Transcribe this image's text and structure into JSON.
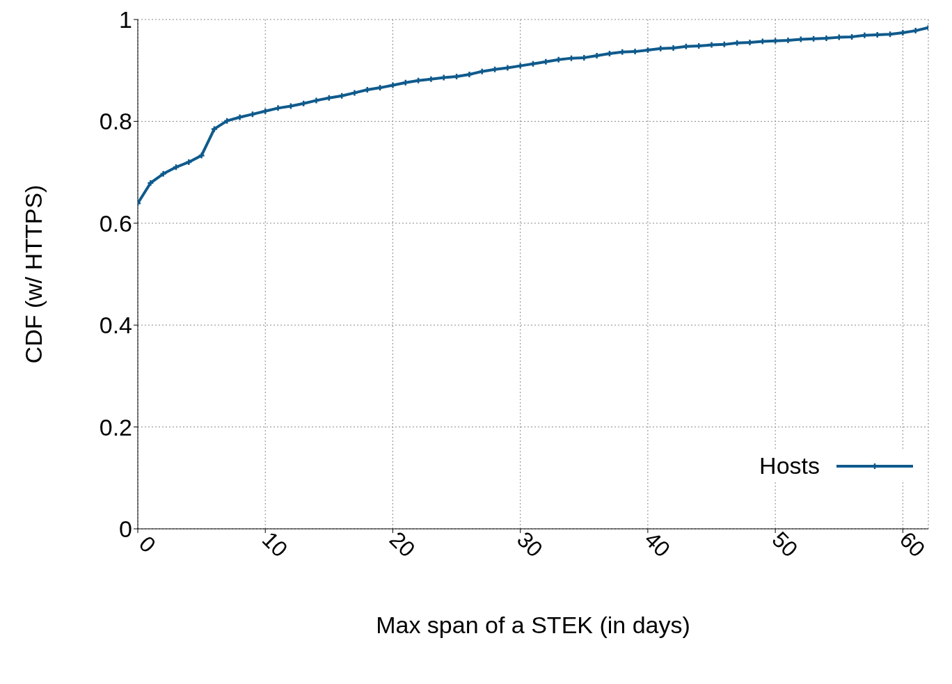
{
  "chart_data": {
    "type": "line",
    "xlabel": "Max span of a STEK (in days)",
    "ylabel": "CDF (w/ HTTPS)",
    "x": [
      0,
      1,
      2,
      3,
      4,
      5,
      6,
      7,
      8,
      9,
      10,
      11,
      12,
      13,
      14,
      15,
      16,
      17,
      18,
      19,
      20,
      21,
      22,
      23,
      24,
      25,
      26,
      27,
      28,
      29,
      30,
      31,
      32,
      33,
      34,
      35,
      36,
      37,
      38,
      39,
      40,
      41,
      42,
      43,
      44,
      45,
      46,
      47,
      48,
      49,
      50,
      51,
      52,
      53,
      54,
      55,
      56,
      57,
      58,
      59,
      60,
      61,
      62
    ],
    "series": [
      {
        "name": "Hosts",
        "color": "#0f5a8c",
        "values": [
          0.639,
          0.679,
          0.697,
          0.71,
          0.72,
          0.733,
          0.785,
          0.801,
          0.808,
          0.814,
          0.82,
          0.826,
          0.83,
          0.835,
          0.841,
          0.846,
          0.85,
          0.856,
          0.862,
          0.866,
          0.871,
          0.876,
          0.88,
          0.883,
          0.886,
          0.888,
          0.892,
          0.898,
          0.902,
          0.905,
          0.909,
          0.913,
          0.917,
          0.921,
          0.924,
          0.925,
          0.929,
          0.933,
          0.936,
          0.937,
          0.94,
          0.943,
          0.944,
          0.947,
          0.948,
          0.95,
          0.951,
          0.954,
          0.955,
          0.957,
          0.958,
          0.959,
          0.961,
          0.962,
          0.963,
          0.965,
          0.966,
          0.969,
          0.97,
          0.971,
          0.974,
          0.978,
          0.984
        ]
      }
    ],
    "xlim": [
      0,
      62
    ],
    "xticks": [
      0,
      10,
      20,
      30,
      40,
      50,
      60
    ],
    "ylim": [
      0,
      1
    ],
    "yticks": [
      0,
      0.2,
      0.4,
      0.6,
      0.8,
      1
    ],
    "grid": true,
    "legend": "bottom right",
    "marker": "cross",
    "line_style": "solid"
  }
}
